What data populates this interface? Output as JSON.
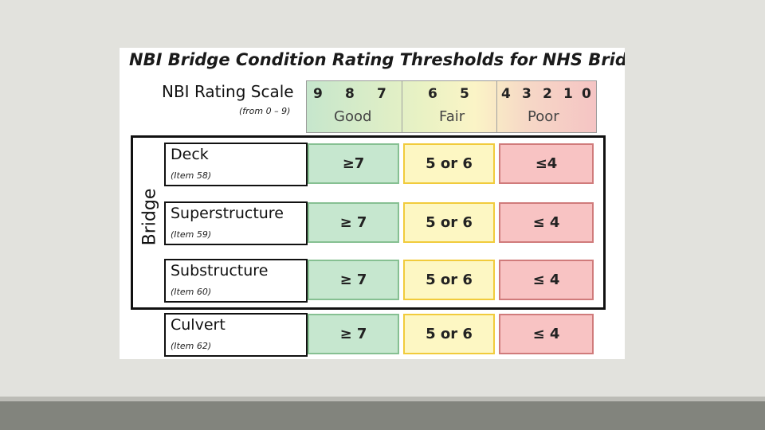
{
  "title": "NBI Bridge Condition Rating Thresholds for NHS Bridges",
  "scale": {
    "title": "NBI Rating Scale",
    "subtitle": "(from 0 – 9)",
    "good": {
      "digits": [
        "9",
        "8",
        "7"
      ],
      "label": "Good"
    },
    "fair": {
      "digits": [
        "6",
        "5"
      ],
      "label": "Fair"
    },
    "poor": {
      "digits": [
        "4",
        "3",
        "2",
        "1",
        "0"
      ],
      "label": "Poor"
    }
  },
  "group_label": "Bridge",
  "rows": [
    {
      "name": "Deck",
      "item": "(Item 58)",
      "good": "≥7",
      "fair": "5 or 6",
      "poor": "≤4"
    },
    {
      "name": "Superstructure",
      "item": "(Item 59)",
      "good": "≥ 7",
      "fair": "5 or 6",
      "poor": "≤ 4"
    },
    {
      "name": "Substructure",
      "item": "(Item 60)",
      "good": "≥ 7",
      "fair": "5 or 6",
      "poor": "≤ 4"
    },
    {
      "name": "Culvert",
      "item": "(Item 62)",
      "good": "≥ 7",
      "fair": "5 or 6",
      "poor": "≤ 4"
    }
  ],
  "colors": {
    "good": "#c6e7cf",
    "fair": "#fdf7c3",
    "poor": "#f8c3c3"
  }
}
